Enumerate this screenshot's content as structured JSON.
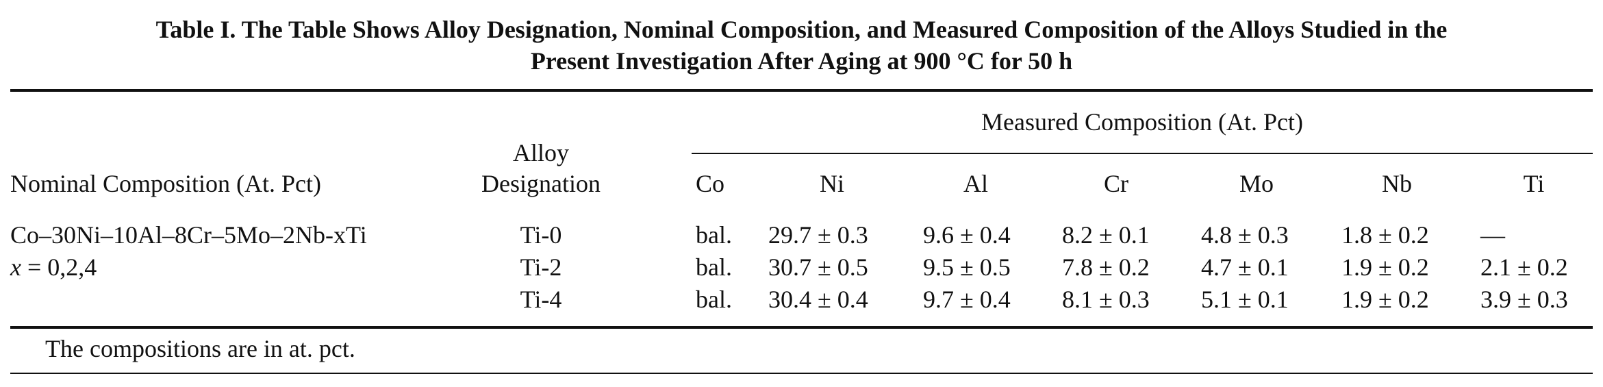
{
  "caption": {
    "line1": "Table I.   The Table Shows Alloy Designation, Nominal Composition, and Measured Composition of the Alloys Studied in the",
    "line2": "Present Investigation After Aging at 900 °C for 50 h"
  },
  "header": {
    "nominal": "Nominal Composition (At. Pct)",
    "alloy_line1": "Alloy",
    "alloy_line2": "Designation",
    "measured_group": "Measured Composition (At. Pct)",
    "elements": [
      "Co",
      "Ni",
      "Al",
      "Cr",
      "Mo",
      "Nb",
      "Ti"
    ]
  },
  "nominal": {
    "line1": "Co–30Ni–10Al–8Cr–5Mo–2Nb-xTi",
    "line2_var": "x",
    "line2_rest": " = 0,2,4"
  },
  "rows": [
    {
      "alloy": "Ti-0",
      "Co": "bal.",
      "Ni": "29.7 ± 0.3",
      "Al": "9.6 ± 0.4",
      "Cr": "8.2 ± 0.1",
      "Mo": "4.8 ± 0.3",
      "Nb": "1.8 ± 0.2",
      "Ti": "—"
    },
    {
      "alloy": "Ti-2",
      "Co": "bal.",
      "Ni": "30.7 ± 0.5",
      "Al": "9.5 ± 0.5",
      "Cr": "7.8 ± 0.2",
      "Mo": "4.7 ± 0.1",
      "Nb": "1.9 ± 0.2",
      "Ti": "2.1 ± 0.2"
    },
    {
      "alloy": "Ti-4",
      "Co": "bal.",
      "Ni": "30.4 ± 0.4",
      "Al": "9.7 ± 0.4",
      "Cr": "8.1 ± 0.3",
      "Mo": "5.1 ± 0.1",
      "Nb": "1.9 ± 0.2",
      "Ti": "3.9 ± 0.3"
    }
  ],
  "footnote": "The compositions are in at. pct."
}
